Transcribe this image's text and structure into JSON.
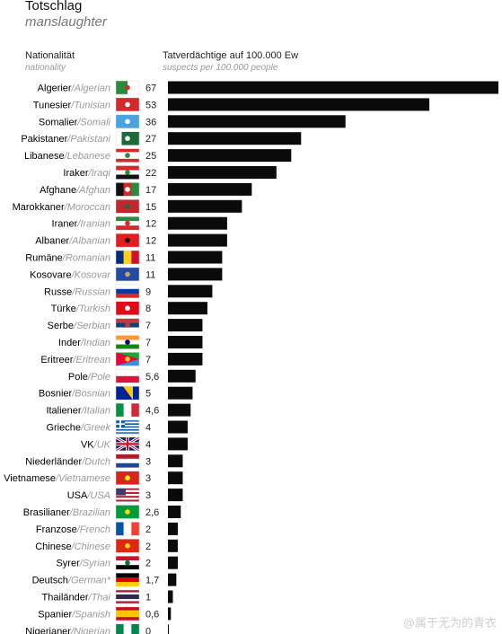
{
  "header": {
    "title": "Totschlag",
    "subtitle": "manslaughter",
    "nationality_label": "Nationalität",
    "nationality_sub": "nationality",
    "value_label": "Tatverdächtige auf 100.000 Ew",
    "value_sub": "suspects per 100.000 people"
  },
  "watermark": "@属于无为的青衣",
  "chart_data": {
    "type": "bar",
    "orientation": "horizontal",
    "bar_color": "#0a0a0a",
    "xlim": [
      0,
      67
    ],
    "categories_de": [
      "Algerier",
      "Tunesier",
      "Somalier",
      "Pakistaner",
      "Libanese",
      "Iraker",
      "Afghane",
      "Marokkaner",
      "Iraner",
      "Albaner",
      "Rumäne",
      "Kosovare",
      "Russe",
      "Türke",
      "Serbe",
      "Inder",
      "Eritreer",
      "Pole",
      "Bosnier",
      "Italiener",
      "Grieche",
      "VK",
      "Niederländer",
      "Vietnamese",
      "USA",
      "Brasilianer",
      "Franzose",
      "Chinese",
      "Syrer",
      "Deutsch",
      "Thailänder",
      "Spanier",
      "Nigerianer"
    ],
    "categories_en": [
      "Algerian",
      "Tunisian",
      "Somali",
      "Pakistani",
      "Lebanese",
      "Iraqi",
      "Afghan",
      "Moroccan",
      "Iranian",
      "Albanian",
      "Romanian",
      "Kosovar",
      "Russian",
      "Turkish",
      "Serbian",
      "Indian",
      "Eritrean",
      "Pole",
      "Bosnian",
      "Italian",
      "Greek",
      "UK",
      "Dutch",
      "Vietnamese",
      "USA",
      "Brazilian",
      "French",
      "Chinese",
      "Syrian",
      "German*",
      "Thai",
      "Spanish",
      "Nigerian"
    ],
    "values": [
      67,
      53,
      36,
      27,
      25,
      22,
      17,
      15,
      12,
      12,
      11,
      11,
      9,
      8,
      7,
      7,
      7,
      5.6,
      5,
      4.6,
      4,
      4,
      3,
      3,
      3,
      2.6,
      2,
      2,
      2,
      1.7,
      1,
      0.6,
      0
    ],
    "value_labels": [
      "67",
      "53",
      "36",
      "27",
      "25",
      "22",
      "17",
      "15",
      "12",
      "12",
      "11",
      "11",
      "9",
      "8",
      "7",
      "7",
      "7",
      "5,6",
      "5",
      "4,6",
      "4",
      "4",
      "3",
      "3",
      "3",
      "2,6",
      "2",
      "2",
      "2",
      "1,7",
      "1",
      "0,6",
      "0"
    ],
    "flags": [
      {
        "type": "vert",
        "colors": [
          "#2a8a3e",
          "#ffffff"
        ],
        "emblem": "#d62828"
      },
      {
        "type": "plain",
        "colors": [
          "#d62828"
        ],
        "emblem": "#ffffff"
      },
      {
        "type": "plain",
        "colors": [
          "#4aa3df"
        ],
        "emblem": "#ffffff"
      },
      {
        "type": "vert",
        "colors": [
          "#ffffff",
          "#1b6b3a",
          "#1b6b3a",
          "#1b6b3a"
        ],
        "emblem": "#ffffff"
      },
      {
        "type": "horiz",
        "colors": [
          "#d62828",
          "#ffffff",
          "#ffffff",
          "#d62828"
        ],
        "emblem": "#2a8a3e"
      },
      {
        "type": "horiz",
        "colors": [
          "#d62828",
          "#ffffff",
          "#111111"
        ],
        "emblem": "#2a8a3e"
      },
      {
        "type": "vert",
        "colors": [
          "#111111",
          "#d62828",
          "#2a8a3e"
        ],
        "emblem": "#ffffff"
      },
      {
        "type": "plain",
        "colors": [
          "#c1272d"
        ],
        "emblem": "#1b6b3a"
      },
      {
        "type": "horiz",
        "colors": [
          "#2a8a3e",
          "#ffffff",
          "#d62828"
        ],
        "emblem": "#d62828"
      },
      {
        "type": "plain",
        "colors": [
          "#e41e20"
        ],
        "emblem": "#111111"
      },
      {
        "type": "vert",
        "colors": [
          "#002b7f",
          "#fcd116",
          "#ce1126"
        ]
      },
      {
        "type": "plain",
        "colors": [
          "#244aa5"
        ],
        "emblem": "#d0a650"
      },
      {
        "type": "horiz",
        "colors": [
          "#ffffff",
          "#0039a6",
          "#d52b1e"
        ]
      },
      {
        "type": "plain",
        "colors": [
          "#e30a17"
        ],
        "emblem": "#ffffff"
      },
      {
        "type": "horiz",
        "colors": [
          "#c6363c",
          "#0c4076",
          "#ffffff"
        ],
        "emblem": "#c6363c"
      },
      {
        "type": "horiz",
        "colors": [
          "#ff9933",
          "#ffffff",
          "#138808"
        ],
        "emblem": "#000080"
      },
      {
        "type": "tri",
        "colors": [
          "#12ad2b",
          "#4189dd",
          "#ea0437"
        ],
        "emblem": "#ffc726"
      },
      {
        "type": "horiz",
        "colors": [
          "#ffffff",
          "#dc143c"
        ]
      },
      {
        "type": "diag",
        "colors": [
          "#002395",
          "#fecb00"
        ]
      },
      {
        "type": "vert",
        "colors": [
          "#009246",
          "#ffffff",
          "#ce2b37"
        ]
      },
      {
        "type": "stripes",
        "colors": [
          "#0d5eaf",
          "#ffffff"
        ]
      },
      {
        "type": "uk",
        "colors": [
          "#012169",
          "#ffffff",
          "#c8102e"
        ]
      },
      {
        "type": "horiz",
        "colors": [
          "#ae1c28",
          "#ffffff",
          "#21468b"
        ]
      },
      {
        "type": "plain",
        "colors": [
          "#da251d"
        ],
        "emblem": "#ffff00"
      },
      {
        "type": "us",
        "colors": [
          "#b22234",
          "#ffffff",
          "#3c3b6e"
        ]
      },
      {
        "type": "plain",
        "colors": [
          "#009c3b"
        ],
        "emblem": "#ffdf00"
      },
      {
        "type": "vert",
        "colors": [
          "#0055a4",
          "#ffffff",
          "#ef4135"
        ]
      },
      {
        "type": "plain",
        "colors": [
          "#de2910"
        ],
        "emblem": "#ffde00"
      },
      {
        "type": "horiz",
        "colors": [
          "#ce1126",
          "#ffffff",
          "#000000"
        ],
        "emblem": "#007a3d"
      },
      {
        "type": "horiz",
        "colors": [
          "#000000",
          "#dd0000",
          "#ffce00"
        ]
      },
      {
        "type": "horiz",
        "colors": [
          "#a51931",
          "#f4f5f8",
          "#2d2a4a",
          "#2d2a4a",
          "#f4f5f8",
          "#a51931"
        ]
      },
      {
        "type": "horiz",
        "colors": [
          "#c60b1e",
          "#ffc400",
          "#ffc400",
          "#c60b1e"
        ]
      },
      {
        "type": "vert",
        "colors": [
          "#008751",
          "#ffffff",
          "#008751"
        ]
      }
    ]
  }
}
